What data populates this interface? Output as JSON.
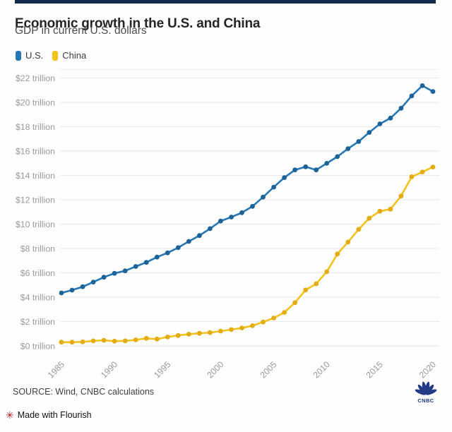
{
  "chart_data": {
    "type": "line",
    "title": "Economic growth in the U.S. and China",
    "subtitle": "GDP in current U.S. dollars",
    "x": [
      1985,
      1986,
      1987,
      1988,
      1989,
      1990,
      1991,
      1992,
      1993,
      1994,
      1995,
      1996,
      1997,
      1998,
      1999,
      2000,
      2001,
      2002,
      2003,
      2004,
      2005,
      2006,
      2007,
      2008,
      2009,
      2010,
      2011,
      2012,
      2013,
      2014,
      2015,
      2016,
      2017,
      2018,
      2019,
      2020
    ],
    "series": [
      {
        "name": "U.S.",
        "color": "#2577b5",
        "marker_color": "#1d6398",
        "values": [
          4.35,
          4.58,
          4.86,
          5.24,
          5.64,
          5.96,
          6.16,
          6.52,
          6.86,
          7.29,
          7.64,
          8.07,
          8.58,
          9.06,
          9.63,
          10.25,
          10.58,
          10.94,
          11.46,
          12.22,
          13.04,
          13.82,
          14.45,
          14.71,
          14.45,
          14.99,
          15.54,
          16.2,
          16.78,
          17.53,
          18.23,
          18.71,
          19.52,
          20.53,
          21.37,
          20.89
        ]
      },
      {
        "name": "China",
        "color": "#f2c21d",
        "marker_color": "#e3ac15",
        "values": [
          0.31,
          0.3,
          0.33,
          0.41,
          0.46,
          0.39,
          0.41,
          0.49,
          0.62,
          0.56,
          0.73,
          0.86,
          0.96,
          1.03,
          1.09,
          1.21,
          1.34,
          1.47,
          1.66,
          1.96,
          2.29,
          2.75,
          3.55,
          4.59,
          5.1,
          6.09,
          7.55,
          8.53,
          9.57,
          10.48,
          11.06,
          11.23,
          12.31,
          13.89,
          14.28,
          14.69
        ]
      }
    ],
    "y_tick_values": [
      0,
      2,
      4,
      6,
      8,
      10,
      12,
      14,
      16,
      18,
      20,
      22
    ],
    "y_tick_labels": [
      "$0 trillion",
      "$2 trillion",
      "$4 trillion",
      "$6 trillion",
      "$8 trillion",
      "$10 trillion",
      "$12 trillion",
      "$14 trillion",
      "$16 trillion",
      "$18 trillion",
      "$20 trillion",
      "$22 trillion"
    ],
    "x_tick_labels": [
      "1985",
      "1990",
      "1995",
      "2000",
      "2005",
      "2010",
      "2015",
      "2020"
    ],
    "ylim": [
      0,
      22.6
    ],
    "grid": true,
    "legend_position": "top-left",
    "grid_color": "#e8e8e8",
    "axis_text_color": "#9a9a9a"
  },
  "footer": {
    "source": "SOURCE: Wind, CNBC calculations",
    "logo_text": "CNBC",
    "made_with": "Made with Flourish"
  },
  "colors": {
    "accent_bar": "#152c4e",
    "background": "#fdfdfd",
    "cnbc_navy": "#233b87",
    "flourish_red": "#a51d25"
  }
}
